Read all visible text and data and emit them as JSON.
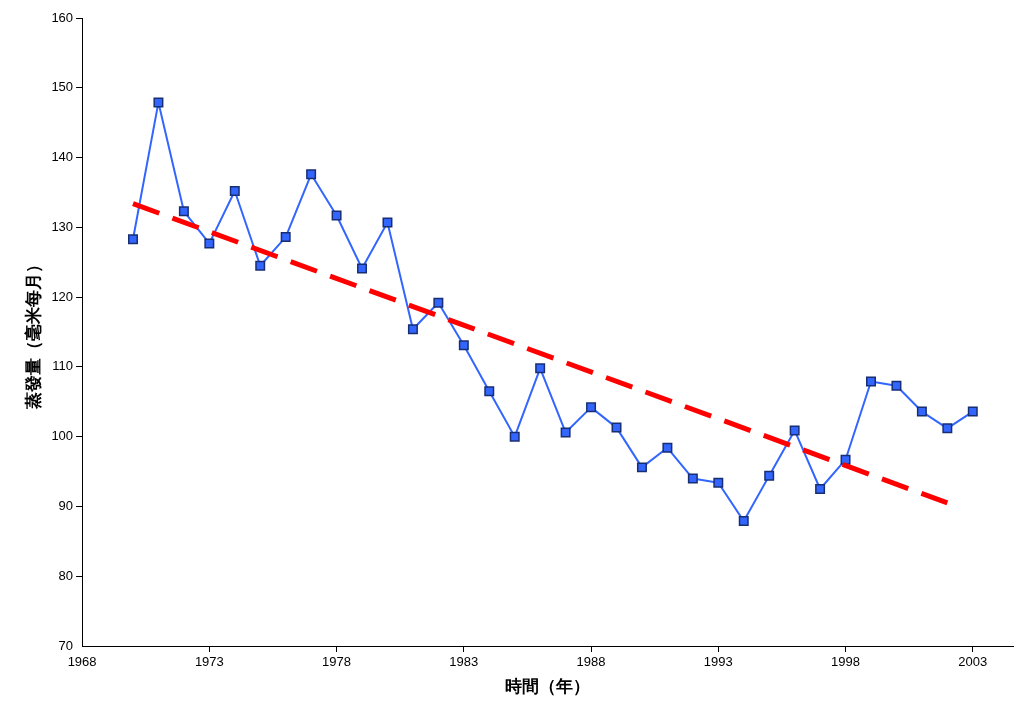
{
  "chart_data": {
    "type": "line",
    "xlabel": "時間（年）",
    "ylabel": "蒸發量（毫米每月）",
    "x": [
      1970,
      1971,
      1972,
      1973,
      1974,
      1975,
      1976,
      1977,
      1978,
      1979,
      1980,
      1981,
      1982,
      1983,
      1984,
      1985,
      1986,
      1987,
      1988,
      1989,
      1990,
      1991,
      1992,
      1993,
      1994,
      1995,
      1996,
      1997,
      1998,
      1999,
      2000,
      2001,
      2002,
      2003
    ],
    "series": [
      {
        "color": "#3366ff",
        "marker": "square",
        "line_style": "solid",
        "values": [
          128.3,
          147.9,
          132.3,
          127.7,
          135.2,
          124.5,
          128.6,
          137.6,
          131.7,
          124.1,
          130.7,
          115.4,
          119.2,
          113.1,
          106.5,
          100.0,
          109.8,
          100.6,
          104.2,
          101.3,
          95.6,
          98.4,
          94.0,
          93.4,
          87.9,
          94.4,
          100.9,
          92.5,
          96.7,
          107.9,
          107.3,
          103.6,
          101.2,
          103.6
        ]
      },
      {
        "type": "line",
        "color": "#ff0000",
        "marker": "none",
        "line_style": "dashed",
        "x": [
          1970,
          2002
        ],
        "values": [
          133.4,
          90.5
        ]
      }
    ],
    "xlim": [
      1968,
      2004.6
    ],
    "xticks": [
      1968,
      1973,
      1978,
      1983,
      1988,
      1993,
      1998,
      2003
    ],
    "ylim": [
      70,
      160
    ],
    "yticks": [
      70,
      80,
      90,
      100,
      110,
      120,
      130,
      140,
      150,
      160
    ],
    "grid": false,
    "legend": false
  }
}
